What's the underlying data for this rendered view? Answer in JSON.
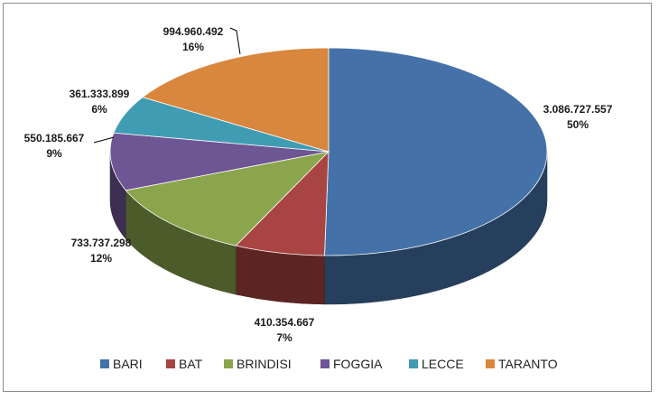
{
  "chart_data": {
    "type": "pie",
    "title": "",
    "categories": [
      "BARI",
      "BAT",
      "BRINDISI",
      "FOGGIA",
      "LECCE",
      "TARANTO"
    ],
    "values": [
      3086727557,
      410354667,
      733737298,
      550185667,
      361333899,
      994960492
    ],
    "value_labels": [
      "3.086.727.557",
      "410.354.667",
      "733.737.298",
      "550.185.667",
      "361.333.899",
      "994.960.492"
    ],
    "percent_labels": [
      "50%",
      "7%",
      "12%",
      "9%",
      "6%",
      "16%"
    ],
    "colors": [
      "#4472A8",
      "#A84442",
      "#8BA54D",
      "#6E5593",
      "#3F9CB2",
      "#D9863E"
    ],
    "legend_position": "bottom",
    "style": "3d-pie"
  }
}
